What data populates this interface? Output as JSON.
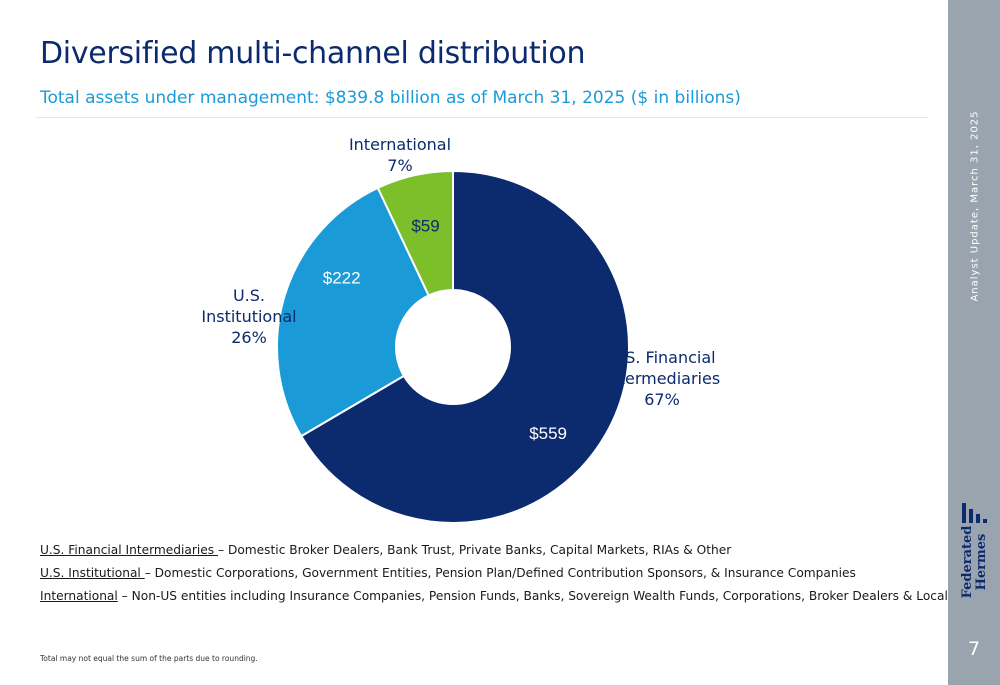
{
  "slide": {
    "title": "Diversified multi-channel distribution",
    "subtitle": "Total assets under management: $839.8 billion as of March 31, 2025 ($ in billions)",
    "page_number": "7",
    "side_caption": "Analyst Update, March 31, 2025",
    "logo_text": [
      "Federated",
      "Hermes"
    ],
    "footnote": "Total may not equal the sum of the parts due to rounding."
  },
  "definitions": [
    {
      "term": "U.S. Financial Intermediaries ",
      "text": "– Domestic Broker Dealers, Bank Trust, Private Banks, Capital Markets, RIAs & Other"
    },
    {
      "term": "U.S. Institutional ",
      "text": "– Domestic Corporations, Government Entities, Pension Plan/Defined Contribution Sponsors, & Insurance Companies"
    },
    {
      "term": "International",
      "text": " – Non-US entities including Insurance Companies, Pension Funds, Banks, Sovereign Wealth Funds, Corporations, Broker Dealers & Local Governments"
    }
  ],
  "colors": {
    "navy": "#0c2a6e",
    "sky": "#1a9bd8",
    "green": "#7cbf2a",
    "sidebar": "#99a4af"
  },
  "chart_data": {
    "type": "pie",
    "style": "donut",
    "slices": [
      {
        "label_lines": [
          "U.S. Financial",
          "Intermediaries"
        ],
        "percent": "67%",
        "value": 559,
        "value_label": "$559",
        "color": "#0c2a6e"
      },
      {
        "label_lines": [
          "U.S.",
          "Institutional"
        ],
        "percent": "26%",
        "value": 222,
        "value_label": "$222",
        "color": "#1a9bd8"
      },
      {
        "label_lines": [
          "International"
        ],
        "percent": "7%",
        "value": 59,
        "value_label": "$59",
        "color": "#7cbf2a"
      }
    ]
  }
}
